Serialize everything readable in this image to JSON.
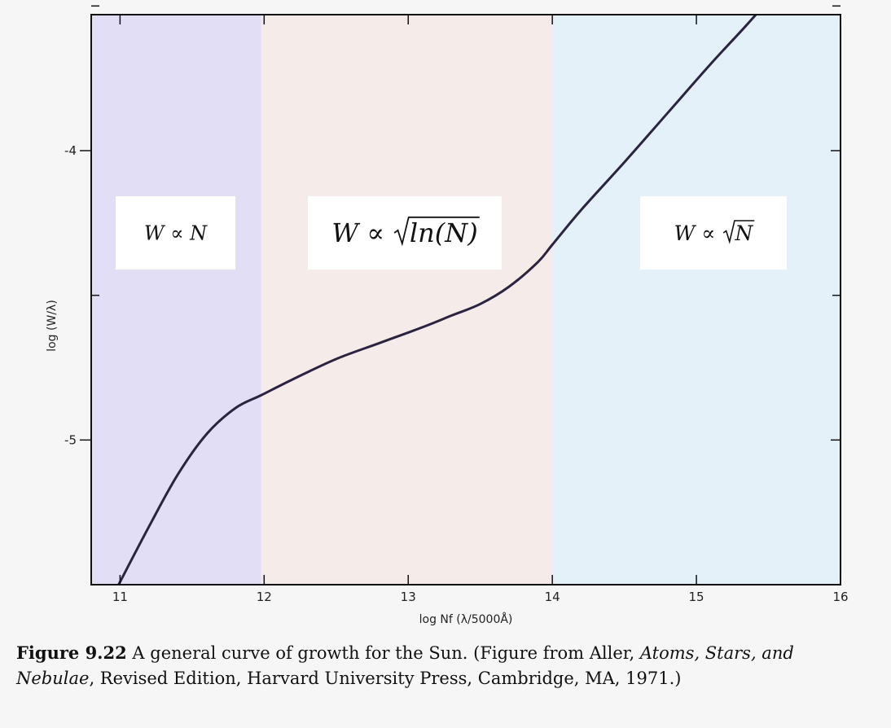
{
  "chart_data": {
    "type": "line",
    "xlabel": "log Nf (λ/5000Å)",
    "ylabel": "log (W/λ)",
    "xlim": [
      10.8,
      16
    ],
    "ylim": [
      -5.5,
      -3.53
    ],
    "x_ticks": [
      "11",
      "12",
      "13",
      "14",
      "15",
      "16"
    ],
    "y_ticks": [
      "-4",
      "-5"
    ],
    "grid": false,
    "regions": [
      {
        "x": [
          10.8,
          11.98
        ],
        "color": "#e2def6",
        "label": "W ∝ N"
      },
      {
        "x": [
          11.98,
          14.0
        ],
        "color": "#f5ebe9",
        "label": "W ∝ √ln(N)"
      },
      {
        "x": [
          14.0,
          16.0
        ],
        "color": "#e4f1f8",
        "label": "W ∝ √N"
      }
    ],
    "series": [
      {
        "color": "#2b2440",
        "points": [
          [
            10.99,
            -5.5
          ],
          [
            11.2,
            -5.3
          ],
          [
            11.4,
            -5.12
          ],
          [
            11.6,
            -4.98
          ],
          [
            11.8,
            -4.89
          ],
          [
            11.98,
            -4.845
          ],
          [
            12.2,
            -4.79
          ],
          [
            12.5,
            -4.72
          ],
          [
            12.8,
            -4.665
          ],
          [
            13.1,
            -4.61
          ],
          [
            13.3,
            -4.57
          ],
          [
            13.5,
            -4.53
          ],
          [
            13.7,
            -4.47
          ],
          [
            13.9,
            -4.385
          ],
          [
            14.0,
            -4.325
          ],
          [
            14.2,
            -4.205
          ],
          [
            14.5,
            -4.04
          ],
          [
            14.8,
            -3.87
          ],
          [
            15.1,
            -3.7
          ],
          [
            15.35,
            -3.565
          ],
          [
            15.59,
            -3.43
          ]
        ]
      }
    ]
  },
  "caption": {
    "label": "Figure 9.22",
    "text_before": " A general curve of growth for the Sun. (Figure from Aller, ",
    "book_title": "Atoms, Stars, and Nebulae",
    "text_after": ", Revised Edition, Harvard University Press, Cambridge, MA, 1971.)"
  }
}
